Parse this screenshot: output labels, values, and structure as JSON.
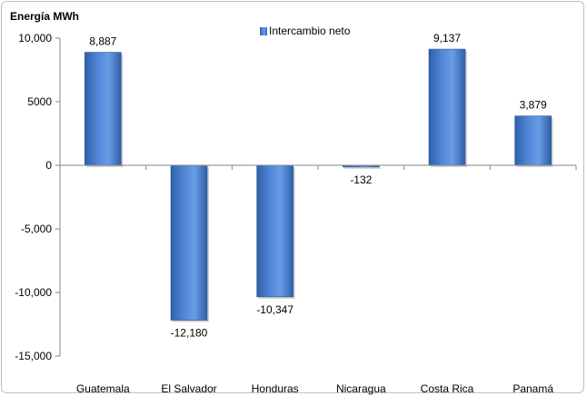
{
  "chart_data": {
    "type": "bar",
    "ylabel": "Energía MWh",
    "categories": [
      "Guatemala",
      "El Salvador",
      "Honduras",
      "Nicaragua",
      "Costa Rica",
      "Panamá"
    ],
    "series": [
      {
        "name": "Intercambio neto",
        "values": [
          8887,
          -12180,
          -10347,
          -132,
          9137,
          3879
        ],
        "value_labels": [
          "8,887",
          "-12,180",
          "-10,347",
          "-132",
          "9,137",
          "3,879"
        ]
      }
    ],
    "ylim": [
      -15000,
      10000
    ],
    "yticks": [
      10000,
      5000,
      0,
      -5000,
      -10000,
      -15000
    ],
    "ytick_labels": [
      "10,000",
      "5000",
      "0",
      "-5,000",
      "-10,000",
      "-15,000"
    ],
    "grid": false,
    "legend": "top-center",
    "colors": {
      "bar": "#4a7fd0",
      "bar_dark": "#2f5fa8",
      "bar_light": "#7aa6e6",
      "axis": "#868686"
    }
  }
}
